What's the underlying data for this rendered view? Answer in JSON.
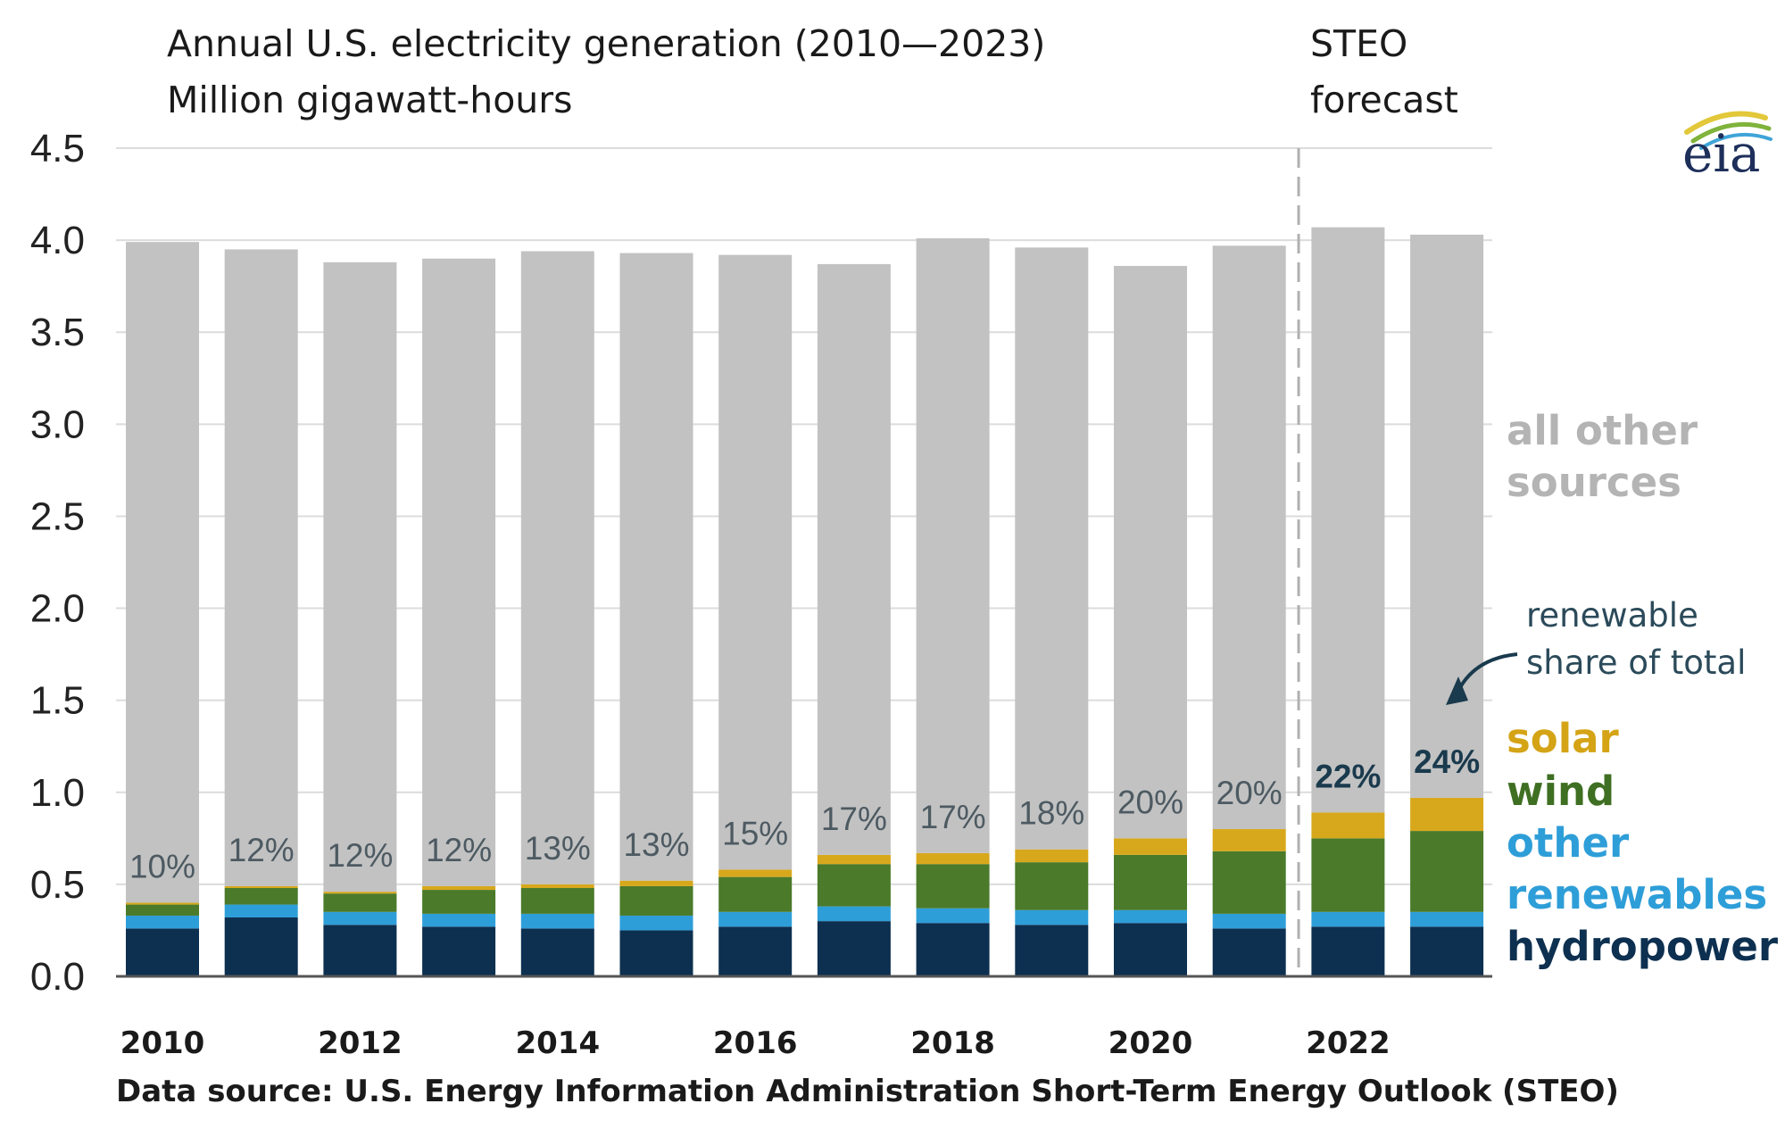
{
  "chart_data": {
    "type": "bar",
    "stacked": true,
    "title": "Annual U.S. electricity generation (2010—2023)",
    "subtitle": "Million gigawatt-hours",
    "forecast_label_line1": "STEO",
    "forecast_label_line2": "forecast",
    "forecast_start_category": "2022",
    "categories": [
      "2010",
      "2011",
      "2012",
      "2013",
      "2014",
      "2015",
      "2016",
      "2017",
      "2018",
      "2019",
      "2020",
      "2021",
      "2022",
      "2023"
    ],
    "x_tick_labels": [
      "2010",
      "2012",
      "2014",
      "2016",
      "2018",
      "2020",
      "2022"
    ],
    "y_ticks": [
      "0.0",
      "0.5",
      "1.0",
      "1.5",
      "2.0",
      "2.5",
      "3.0",
      "3.5",
      "4.0",
      "4.5"
    ],
    "ylim": [
      0,
      4.5
    ],
    "grid": true,
    "series": [
      {
        "name": "hydropower",
        "color": "#0d3050",
        "values": [
          0.26,
          0.32,
          0.28,
          0.27,
          0.26,
          0.25,
          0.27,
          0.3,
          0.29,
          0.28,
          0.29,
          0.26,
          0.27,
          0.27
        ]
      },
      {
        "name": "other renewables",
        "color": "#2e9ed8",
        "values": [
          0.07,
          0.07,
          0.07,
          0.07,
          0.08,
          0.08,
          0.08,
          0.08,
          0.08,
          0.08,
          0.07,
          0.08,
          0.08,
          0.08
        ]
      },
      {
        "name": "wind",
        "color": "#4a7a2a",
        "values": [
          0.06,
          0.09,
          0.1,
          0.13,
          0.14,
          0.16,
          0.19,
          0.23,
          0.24,
          0.26,
          0.3,
          0.34,
          0.4,
          0.44
        ]
      },
      {
        "name": "solar",
        "color": "#d8a81c",
        "values": [
          0.01,
          0.01,
          0.01,
          0.02,
          0.02,
          0.03,
          0.04,
          0.05,
          0.06,
          0.07,
          0.09,
          0.12,
          0.14,
          0.18
        ]
      },
      {
        "name": "all other sources",
        "color": "#c2c2c2",
        "values": [
          3.59,
          3.46,
          3.42,
          3.41,
          3.44,
          3.41,
          3.34,
          3.21,
          3.34,
          3.27,
          3.11,
          3.17,
          3.18,
          3.06
        ]
      }
    ],
    "totals": [
      3.99,
      3.95,
      3.88,
      3.9,
      3.94,
      3.93,
      3.92,
      3.87,
      4.01,
      3.96,
      3.86,
      3.97,
      4.07,
      4.03
    ],
    "renewable_share_labels": [
      "10%",
      "12%",
      "12%",
      "12%",
      "13%",
      "13%",
      "15%",
      "17%",
      "17%",
      "18%",
      "20%",
      "20%",
      "22%",
      "24%"
    ],
    "legend": {
      "all_other_line1": "all other",
      "all_other_line2": "sources",
      "solar": "solar",
      "wind": "wind",
      "other_line1": "other",
      "other_line2": "renewables",
      "hydropower": "hydropower"
    },
    "annotation_line1": "renewable",
    "annotation_line2": "share of total",
    "source": "Data source: U.S. Energy Information Administration Short-Term Energy Outlook (STEO)",
    "logo": "eia"
  },
  "colors": {
    "all_other_text": "#b4b4b4",
    "solar_text": "#d4a416",
    "wind_text": "#3f6f22",
    "other_text": "#2e9ed8",
    "hydro_text": "#0d3050",
    "pct_hist": "#4d5a62",
    "pct_forecast": "#1a3a4d"
  }
}
